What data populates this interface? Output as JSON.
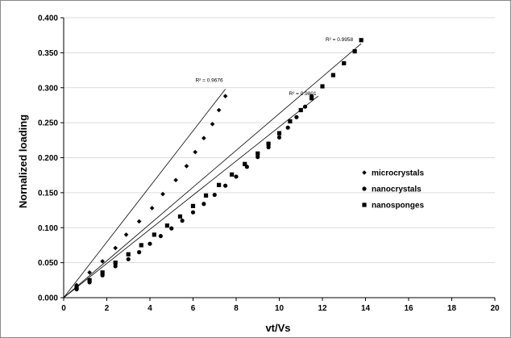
{
  "chart_data": {
    "type": "scatter",
    "xlabel": "vt/Vs",
    "ylabel": "Nornalized loading",
    "xlim": [
      0,
      20
    ],
    "ylim": [
      0,
      0.4
    ],
    "x_ticks": [
      "0",
      "2",
      "4",
      "6",
      "8",
      "10",
      "12",
      "14",
      "16",
      "18",
      "20"
    ],
    "y_ticks": [
      "0.000",
      "0.050",
      "0.100",
      "0.150",
      "0.200",
      "0.250",
      "0.300",
      "0.350",
      "0.400"
    ],
    "legend_position": "right",
    "series": [
      {
        "name": "microcrystals",
        "marker": "diamond",
        "x": [
          0.6,
          1.2,
          1.8,
          2.4,
          2.9,
          3.5,
          4.1,
          4.6,
          5.2,
          5.7,
          6.1,
          6.5,
          6.9,
          7.2,
          7.5
        ],
        "y": [
          0.018,
          0.036,
          0.052,
          0.071,
          0.09,
          0.109,
          0.128,
          0.148,
          0.168,
          0.188,
          0.208,
          0.228,
          0.248,
          0.268,
          0.288
        ],
        "fit": {
          "r2_label": "R² = 0.9676",
          "x": [
            0,
            7.5
          ],
          "y": [
            0,
            0.298
          ]
        }
      },
      {
        "name": "nanocrystals",
        "marker": "circle",
        "x": [
          0.6,
          1.2,
          1.8,
          2.4,
          3.0,
          3.5,
          4.0,
          4.5,
          5.0,
          5.5,
          6.0,
          6.5,
          7.0,
          7.5,
          8.0,
          8.5,
          9.0,
          9.5,
          10.0,
          10.4,
          10.8,
          11.2,
          11.5
        ],
        "y": [
          0.012,
          0.022,
          0.032,
          0.045,
          0.055,
          0.065,
          0.077,
          0.088,
          0.099,
          0.11,
          0.122,
          0.134,
          0.147,
          0.16,
          0.173,
          0.187,
          0.201,
          0.215,
          0.229,
          0.243,
          0.258,
          0.273,
          0.288
        ],
        "fit": {
          "r2_label": "R² = 0.9801",
          "x": [
            0,
            11.8
          ],
          "y": [
            0,
            0.288
          ]
        }
      },
      {
        "name": "nanosponges",
        "marker": "square",
        "x": [
          0.6,
          1.2,
          1.8,
          2.4,
          3.0,
          3.6,
          4.2,
          4.8,
          5.4,
          6.0,
          6.6,
          7.2,
          7.8,
          8.4,
          9.0,
          9.5,
          10.0,
          10.5,
          11.0,
          11.5,
          12.0,
          12.5,
          13.0,
          13.5,
          13.8
        ],
        "y": [
          0.015,
          0.025,
          0.036,
          0.05,
          0.062,
          0.075,
          0.09,
          0.103,
          0.116,
          0.131,
          0.146,
          0.161,
          0.176,
          0.191,
          0.206,
          0.22,
          0.235,
          0.252,
          0.268,
          0.285,
          0.302,
          0.318,
          0.335,
          0.352,
          0.368
        ],
        "fit": {
          "r2_label": "R² = 0.9958",
          "x": [
            0,
            13.8
          ],
          "y": [
            0,
            0.363
          ]
        }
      }
    ]
  }
}
